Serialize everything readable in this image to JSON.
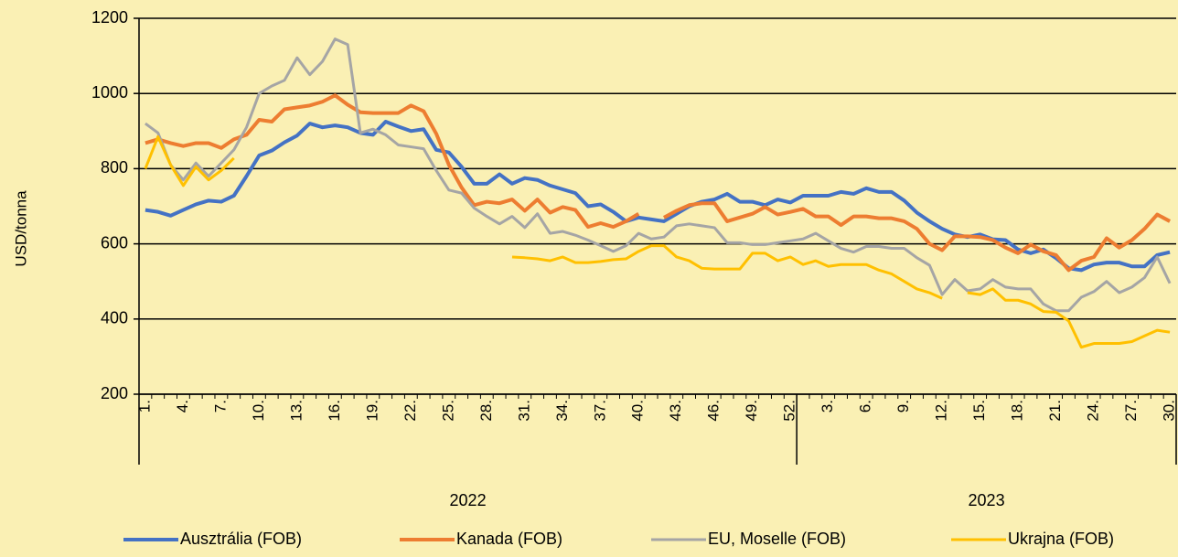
{
  "chart_data": {
    "type": "line",
    "y_label": "USD/tonna",
    "categories": [
      "1.",
      null,
      null,
      "4.",
      null,
      null,
      "7.",
      null,
      null,
      "10.",
      null,
      null,
      "13.",
      null,
      null,
      "16.",
      null,
      null,
      "19.",
      null,
      null,
      "22.",
      null,
      null,
      "25.",
      null,
      null,
      "28.",
      null,
      null,
      "31.",
      null,
      null,
      "34.",
      null,
      null,
      "37.",
      null,
      null,
      "40.",
      null,
      null,
      "43.",
      null,
      null,
      "46.",
      null,
      null,
      "49.",
      null,
      null,
      "52.",
      null,
      null,
      "3.",
      null,
      null,
      "6.",
      null,
      null,
      "9.",
      null,
      null,
      "12.",
      null,
      null,
      "15.",
      null,
      null,
      "18.",
      null,
      null,
      "21.",
      null,
      null,
      "24.",
      null,
      null,
      "27.",
      null,
      null,
      "30."
    ],
    "groups": [
      {
        "label": "2022",
        "count": 52
      },
      {
        "label": "2023",
        "count": 30
      }
    ],
    "ylim": [
      200,
      1200
    ],
    "yticks": [
      200,
      400,
      600,
      800,
      1000,
      1200
    ],
    "grid": true,
    "legend": "bottom",
    "series": [
      {
        "name": "Ausztrália (FOB)",
        "color": "#4472c4",
        "width": 4,
        "values": [
          690,
          685,
          675,
          690,
          705,
          715,
          712,
          728,
          780,
          835,
          848,
          870,
          888,
          920,
          910,
          915,
          910,
          895,
          890,
          925,
          912,
          900,
          905,
          850,
          843,
          805,
          760,
          760,
          785,
          760,
          775,
          770,
          755,
          745,
          735,
          700,
          705,
          685,
          660,
          670,
          665,
          660,
          680,
          700,
          712,
          718,
          733,
          712,
          712,
          703,
          718,
          710,
          728,
          728,
          728,
          738,
          733,
          748,
          738,
          738,
          715,
          683,
          660,
          640,
          625,
          618,
          625,
          612,
          610,
          585,
          575,
          585,
          562,
          535,
          530,
          545,
          550,
          550,
          540,
          540,
          570,
          578
        ]
      },
      {
        "name": "Kanada (FOB)",
        "color": "#ed7d31",
        "width": 4,
        "values": [
          868,
          878,
          868,
          860,
          868,
          868,
          855,
          878,
          890,
          930,
          925,
          958,
          963,
          968,
          978,
          995,
          970,
          950,
          948,
          948,
          948,
          968,
          953,
          893,
          810,
          750,
          703,
          712,
          708,
          718,
          688,
          718,
          683,
          698,
          690,
          645,
          655,
          645,
          660,
          680,
          null,
          670,
          688,
          703,
          708,
          708,
          660,
          670,
          680,
          698,
          678,
          685,
          693,
          673,
          673,
          650,
          673,
          673,
          668,
          668,
          660,
          640,
          600,
          583,
          620,
          620,
          618,
          610,
          590,
          575,
          598,
          580,
          570,
          530,
          555,
          565,
          615,
          590,
          610,
          640,
          678,
          660
        ]
      },
      {
        "name": "EU, Moselle (FOB)",
        "color": "#a5a5a5",
        "width": 3,
        "values": [
          920,
          895,
          810,
          770,
          815,
          780,
          815,
          850,
          910,
          1000,
          1020,
          1035,
          1095,
          1050,
          1085,
          1145,
          1130,
          895,
          905,
          890,
          863,
          858,
          853,
          795,
          743,
          735,
          695,
          673,
          653,
          673,
          643,
          680,
          628,
          633,
          623,
          610,
          595,
          580,
          595,
          628,
          613,
          618,
          648,
          653,
          648,
          643,
          603,
          603,
          598,
          598,
          603,
          608,
          613,
          628,
          608,
          588,
          578,
          593,
          593,
          588,
          588,
          563,
          543,
          465,
          505,
          475,
          480,
          505,
          485,
          480,
          480,
          440,
          422,
          422,
          458,
          473,
          500,
          470,
          485,
          510,
          565,
          495
        ]
      },
      {
        "name": "Ukrajna (FOB)",
        "color": "#ffc000",
        "width": 3,
        "values": [
          800,
          885,
          810,
          755,
          805,
          770,
          795,
          828,
          null,
          null,
          null,
          null,
          null,
          null,
          null,
          null,
          null,
          null,
          null,
          null,
          null,
          null,
          null,
          null,
          null,
          null,
          null,
          null,
          null,
          565,
          563,
          560,
          555,
          565,
          550,
          550,
          553,
          558,
          560,
          580,
          595,
          595,
          565,
          555,
          535,
          533,
          533,
          533,
          575,
          575,
          555,
          565,
          545,
          555,
          540,
          545,
          545,
          545,
          530,
          520,
          500,
          480,
          470,
          455,
          null,
          470,
          465,
          480,
          450,
          450,
          440,
          420,
          418,
          395,
          325,
          335,
          335,
          335,
          340,
          355,
          370,
          365
        ]
      }
    ]
  }
}
